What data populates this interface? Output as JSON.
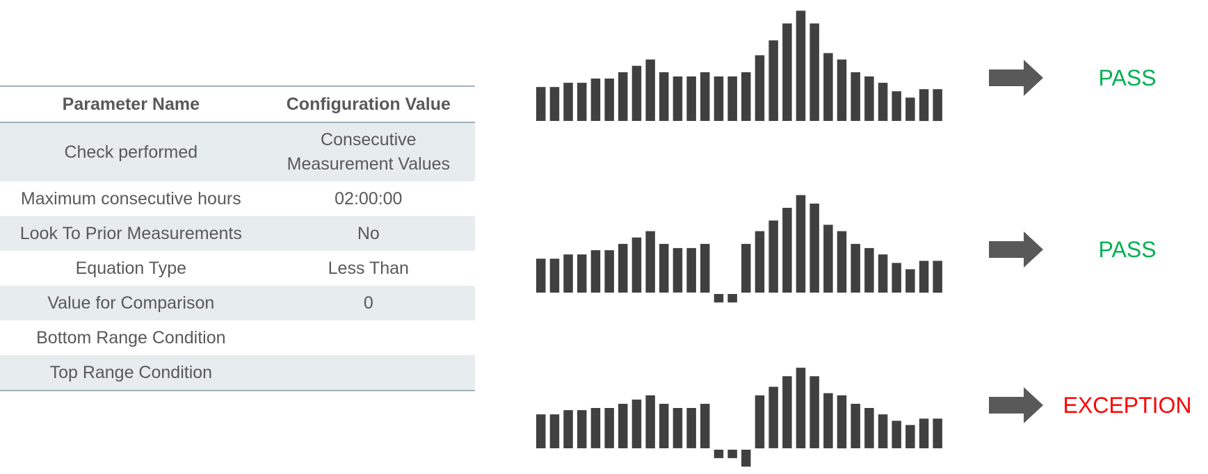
{
  "table": {
    "headers": [
      "Parameter Name",
      "Configuration Value"
    ],
    "rows": [
      {
        "name": "Check performed",
        "value_lines": [
          "Consecutive",
          "Measurement Values"
        ]
      },
      {
        "name": "Maximum consecutive hours",
        "value": "02:00:00"
      },
      {
        "name": "Look To Prior Measurements",
        "value": "No"
      },
      {
        "name": "Equation Type",
        "value": "Less Than"
      },
      {
        "name": "Value for Comparison",
        "value": "0"
      },
      {
        "name": "Bottom Range Condition",
        "value": ""
      },
      {
        "name": "Top Range Condition",
        "value": ""
      }
    ]
  },
  "colors": {
    "bar": "#404040",
    "arrow": "#595959",
    "pass": "#00b050",
    "exception": "#ff0000"
  },
  "chart_data": [
    {
      "type": "bar",
      "values": [
        8,
        8,
        9,
        9,
        10,
        10,
        11.5,
        13,
        14.5,
        11.5,
        10.5,
        10.5,
        11.5,
        10.5,
        10.5,
        11.5,
        15.5,
        19,
        23,
        26,
        23,
        16,
        14.5,
        11.5,
        10.5,
        9,
        7,
        5.5,
        7.5,
        7.5
      ],
      "result_label": "PASS",
      "result_color": "#00b050"
    },
    {
      "type": "bar",
      "values": [
        8,
        8,
        9,
        9,
        10,
        10,
        11.5,
        13,
        14.5,
        11.5,
        10.5,
        10.5,
        11.5,
        -2,
        -2,
        11.5,
        14.5,
        17,
        20,
        23,
        21,
        16,
        14.5,
        11.5,
        10.5,
        9,
        7,
        5.5,
        7.5,
        7.5
      ],
      "result_label": "PASS",
      "result_color": "#00b050"
    },
    {
      "type": "bar",
      "values": [
        8,
        8,
        9,
        9,
        9.5,
        9.5,
        10.5,
        11.5,
        12.5,
        10.5,
        9.5,
        9.5,
        10.5,
        -2,
        -2,
        -4,
        12.5,
        14.5,
        17,
        19,
        17,
        13,
        12.5,
        10.5,
        9.5,
        8,
        6.5,
        5.5,
        7,
        7
      ],
      "result_label": "EXCEPTION",
      "result_color": "#ff0000"
    }
  ]
}
